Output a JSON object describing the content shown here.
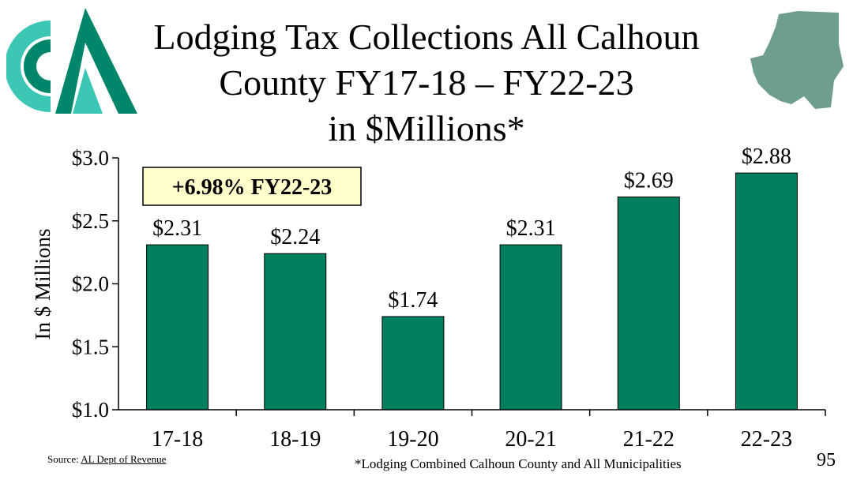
{
  "slide": {
    "title_lines": [
      "Lodging Tax Collections All Calhoun",
      "County FY17-18 – FY22-23",
      "in $Millions*"
    ],
    "source_prefix": "Source: ",
    "source_link": "AL Dept of Revenue",
    "footnote": "*Lodging Combined Calhoun County and All Municipalities",
    "page_number": "95",
    "logo_icon": "cmi-logo-icon",
    "map_icon": "calhoun-county-map-icon"
  },
  "colors": {
    "bar": "#007F5F",
    "callout_bg": "#FFFFCC",
    "map": "#6E9E8C",
    "logo_dark": "#00866A",
    "logo_light": "#3CC6B4"
  },
  "chart_data": {
    "type": "bar",
    "categories": [
      "17-18",
      "18-19",
      "19-20",
      "20-21",
      "21-22",
      "22-23"
    ],
    "values": [
      2.31,
      2.24,
      1.74,
      2.31,
      2.69,
      2.88
    ],
    "value_labels": [
      "$2.31",
      "$2.24",
      "$1.74",
      "$2.31",
      "$2.69",
      "$2.88"
    ],
    "ylabel": "In $ Millions",
    "xlabel": "",
    "ylim": [
      1.0,
      3.0
    ],
    "yticks": [
      1.0,
      1.5,
      2.0,
      2.5,
      3.0
    ],
    "ytick_labels": [
      "$1.0",
      "$1.5",
      "$2.0",
      "$2.5",
      "$3.0"
    ],
    "grid": false,
    "annotation": "+6.98% FY22-23"
  }
}
